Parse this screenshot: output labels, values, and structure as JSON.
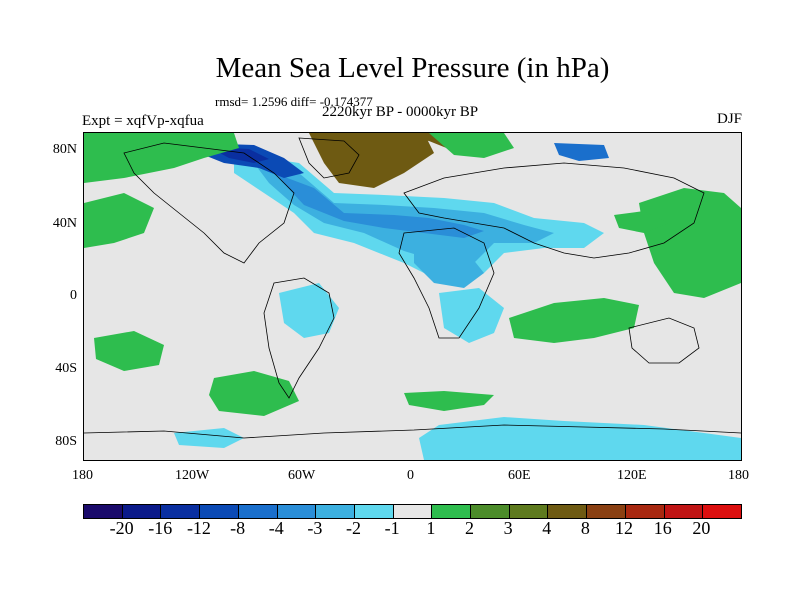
{
  "title": "Mean Sea Level Pressure (in hPa)",
  "stats": "rmsd= 1.2596 diff= -0.174377",
  "left_label": "Expt = xqfVp-xqfua",
  "center_label": "2220kyr BP - 0000kyr BP",
  "right_label": "DJF",
  "lat_labels": [
    "80N",
    "40N",
    "0",
    "40S",
    "80S"
  ],
  "lon_labels": [
    "180",
    "120W",
    "60W",
    "0",
    "60E",
    "120E",
    "180"
  ],
  "colorbar": {
    "labels": [
      "-20",
      "-16",
      "-12",
      "-8",
      "-4",
      "-3",
      "-2",
      "-1",
      "1",
      "2",
      "3",
      "4",
      "8",
      "12",
      "16",
      "20"
    ],
    "colors": [
      "#1a0a6b",
      "#0b1a8a",
      "#0a2fa0",
      "#0b4ab5",
      "#1a6fcc",
      "#2a8ed8",
      "#3cb0e0",
      "#5fd8ee",
      "#e6e6e6",
      "#2ebd4e",
      "#4c8c2a",
      "#5e7a1e",
      "#6e5a12",
      "#8a4012",
      "#a82810",
      "#c01414",
      "#dc0f0f"
    ]
  },
  "chart_data": {
    "type": "heatmap",
    "title": "Mean Sea Level Pressure (in hPa)",
    "subtitle": "2220kyr BP - 0000kyr BP",
    "season": "DJF",
    "experiment": "xqfVp-xqfua",
    "rmsd": 1.2596,
    "diff": -0.174377,
    "xlim": [
      -180,
      180
    ],
    "ylim": [
      -90,
      90
    ],
    "units": "hPa"
  }
}
